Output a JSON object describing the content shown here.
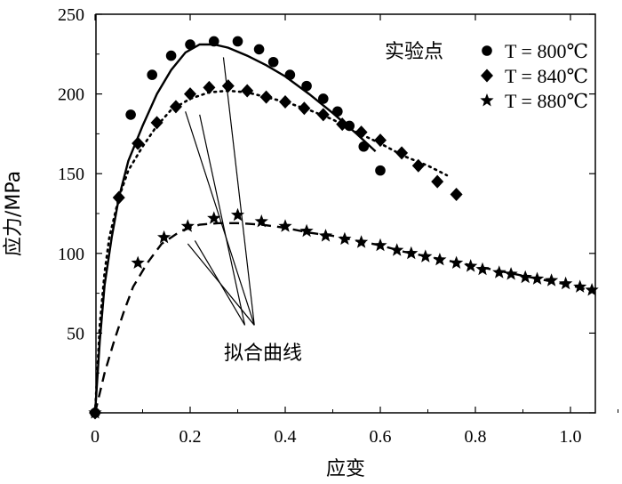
{
  "chart_data": {
    "type": "scatter",
    "xlabel": "应变",
    "ylabel": "应力/MPa",
    "xlim": [
      0,
      1.1
    ],
    "ylim": [
      0,
      250
    ],
    "xticks": [
      0,
      0.2,
      0.4,
      0.6,
      0.8,
      1.0
    ],
    "xtick_labels": [
      "0",
      "0.2",
      "0.4",
      "0.6",
      "0.8",
      "1.0"
    ],
    "yticks": [
      0,
      50,
      100,
      150,
      200,
      250
    ],
    "ytick_labels": [
      "",
      "50",
      "100",
      "150",
      "200",
      "250"
    ],
    "grid": false,
    "legend": {
      "title": "实验点",
      "placement": "top-right",
      "entries": [
        "T = 800℃",
        "T = 840℃",
        "T = 880℃"
      ]
    },
    "annotation": "拟合曲线",
    "series": [
      {
        "name": "T = 800℃",
        "marker": "circle",
        "points": [
          [
            0.0,
            0.0
          ],
          [
            0.075,
            187
          ],
          [
            0.12,
            212
          ],
          [
            0.16,
            224
          ],
          [
            0.2,
            231
          ],
          [
            0.25,
            233
          ],
          [
            0.3,
            233
          ],
          [
            0.345,
            228
          ],
          [
            0.375,
            220
          ],
          [
            0.41,
            212
          ],
          [
            0.445,
            205
          ],
          [
            0.48,
            197
          ],
          [
            0.51,
            189
          ],
          [
            0.535,
            180
          ],
          [
            0.565,
            167
          ],
          [
            0.6,
            152
          ]
        ]
      },
      {
        "name": "T = 840℃",
        "marker": "diamond",
        "points": [
          [
            0.0,
            0.0
          ],
          [
            0.05,
            135
          ],
          [
            0.09,
            169
          ],
          [
            0.13,
            182
          ],
          [
            0.17,
            192
          ],
          [
            0.2,
            200
          ],
          [
            0.24,
            204
          ],
          [
            0.28,
            205
          ],
          [
            0.32,
            202
          ],
          [
            0.36,
            198
          ],
          [
            0.4,
            195
          ],
          [
            0.44,
            191
          ],
          [
            0.48,
            187
          ],
          [
            0.52,
            181
          ],
          [
            0.56,
            176
          ],
          [
            0.6,
            171
          ],
          [
            0.645,
            163
          ],
          [
            0.68,
            155
          ],
          [
            0.72,
            145
          ],
          [
            0.76,
            137
          ]
        ]
      },
      {
        "name": "T = 880℃",
        "marker": "star",
        "points": [
          [
            0.0,
            0.0
          ],
          [
            0.09,
            94
          ],
          [
            0.145,
            110
          ],
          [
            0.195,
            117
          ],
          [
            0.25,
            122
          ],
          [
            0.3,
            124
          ],
          [
            0.35,
            120
          ],
          [
            0.4,
            117
          ],
          [
            0.445,
            114
          ],
          [
            0.485,
            111
          ],
          [
            0.525,
            109
          ],
          [
            0.56,
            107
          ],
          [
            0.6,
            105
          ],
          [
            0.635,
            102
          ],
          [
            0.665,
            100
          ],
          [
            0.695,
            98
          ],
          [
            0.725,
            96
          ],
          [
            0.76,
            94
          ],
          [
            0.79,
            92
          ],
          [
            0.815,
            90
          ],
          [
            0.85,
            88
          ],
          [
            0.875,
            87
          ],
          [
            0.905,
            85
          ],
          [
            0.93,
            84
          ],
          [
            0.96,
            83
          ],
          [
            0.99,
            81
          ],
          [
            1.02,
            79
          ],
          [
            1.045,
            77
          ]
        ]
      }
    ],
    "fit_curves": [
      {
        "style": "solid",
        "points": [
          [
            0.0,
            0.0
          ],
          [
            0.01,
            45
          ],
          [
            0.02,
            80
          ],
          [
            0.035,
            110
          ],
          [
            0.05,
            135
          ],
          [
            0.07,
            158
          ],
          [
            0.1,
            180
          ],
          [
            0.13,
            200
          ],
          [
            0.16,
            215
          ],
          [
            0.19,
            226
          ],
          [
            0.22,
            231
          ],
          [
            0.25,
            231
          ],
          [
            0.28,
            229
          ],
          [
            0.32,
            224
          ],
          [
            0.36,
            218
          ],
          [
            0.4,
            211
          ],
          [
            0.45,
            200
          ],
          [
            0.5,
            188
          ],
          [
            0.55,
            175
          ],
          [
            0.59,
            164
          ]
        ]
      },
      {
        "style": "dotted",
        "points": [
          [
            0.0,
            0.0
          ],
          [
            0.01,
            55
          ],
          [
            0.02,
            88
          ],
          [
            0.03,
            110
          ],
          [
            0.05,
            135
          ],
          [
            0.07,
            152
          ],
          [
            0.1,
            167
          ],
          [
            0.13,
            180
          ],
          [
            0.16,
            190
          ],
          [
            0.2,
            197
          ],
          [
            0.24,
            201
          ],
          [
            0.28,
            202
          ],
          [
            0.32,
            201
          ],
          [
            0.36,
            198
          ],
          [
            0.4,
            195
          ],
          [
            0.45,
            190
          ],
          [
            0.5,
            184
          ],
          [
            0.55,
            176
          ],
          [
            0.6,
            169
          ],
          [
            0.65,
            161
          ],
          [
            0.7,
            155
          ],
          [
            0.74,
            149
          ]
        ]
      },
      {
        "style": "dashed",
        "points": [
          [
            0.0,
            0.0
          ],
          [
            0.02,
            25
          ],
          [
            0.04,
            45
          ],
          [
            0.06,
            63
          ],
          [
            0.08,
            79
          ],
          [
            0.11,
            94
          ],
          [
            0.14,
            106
          ],
          [
            0.18,
            114
          ],
          [
            0.22,
            118
          ],
          [
            0.26,
            119
          ],
          [
            0.3,
            119
          ],
          [
            0.35,
            118
          ],
          [
            0.4,
            116
          ],
          [
            0.45,
            113
          ],
          [
            0.5,
            111
          ],
          [
            0.55,
            108
          ],
          [
            0.6,
            105
          ],
          [
            0.65,
            101
          ],
          [
            0.7,
            98
          ],
          [
            0.75,
            95
          ],
          [
            0.8,
            92
          ],
          [
            0.85,
            89
          ],
          [
            0.9,
            86
          ],
          [
            0.95,
            83
          ],
          [
            1.0,
            80
          ],
          [
            1.05,
            76
          ]
        ]
      }
    ]
  }
}
